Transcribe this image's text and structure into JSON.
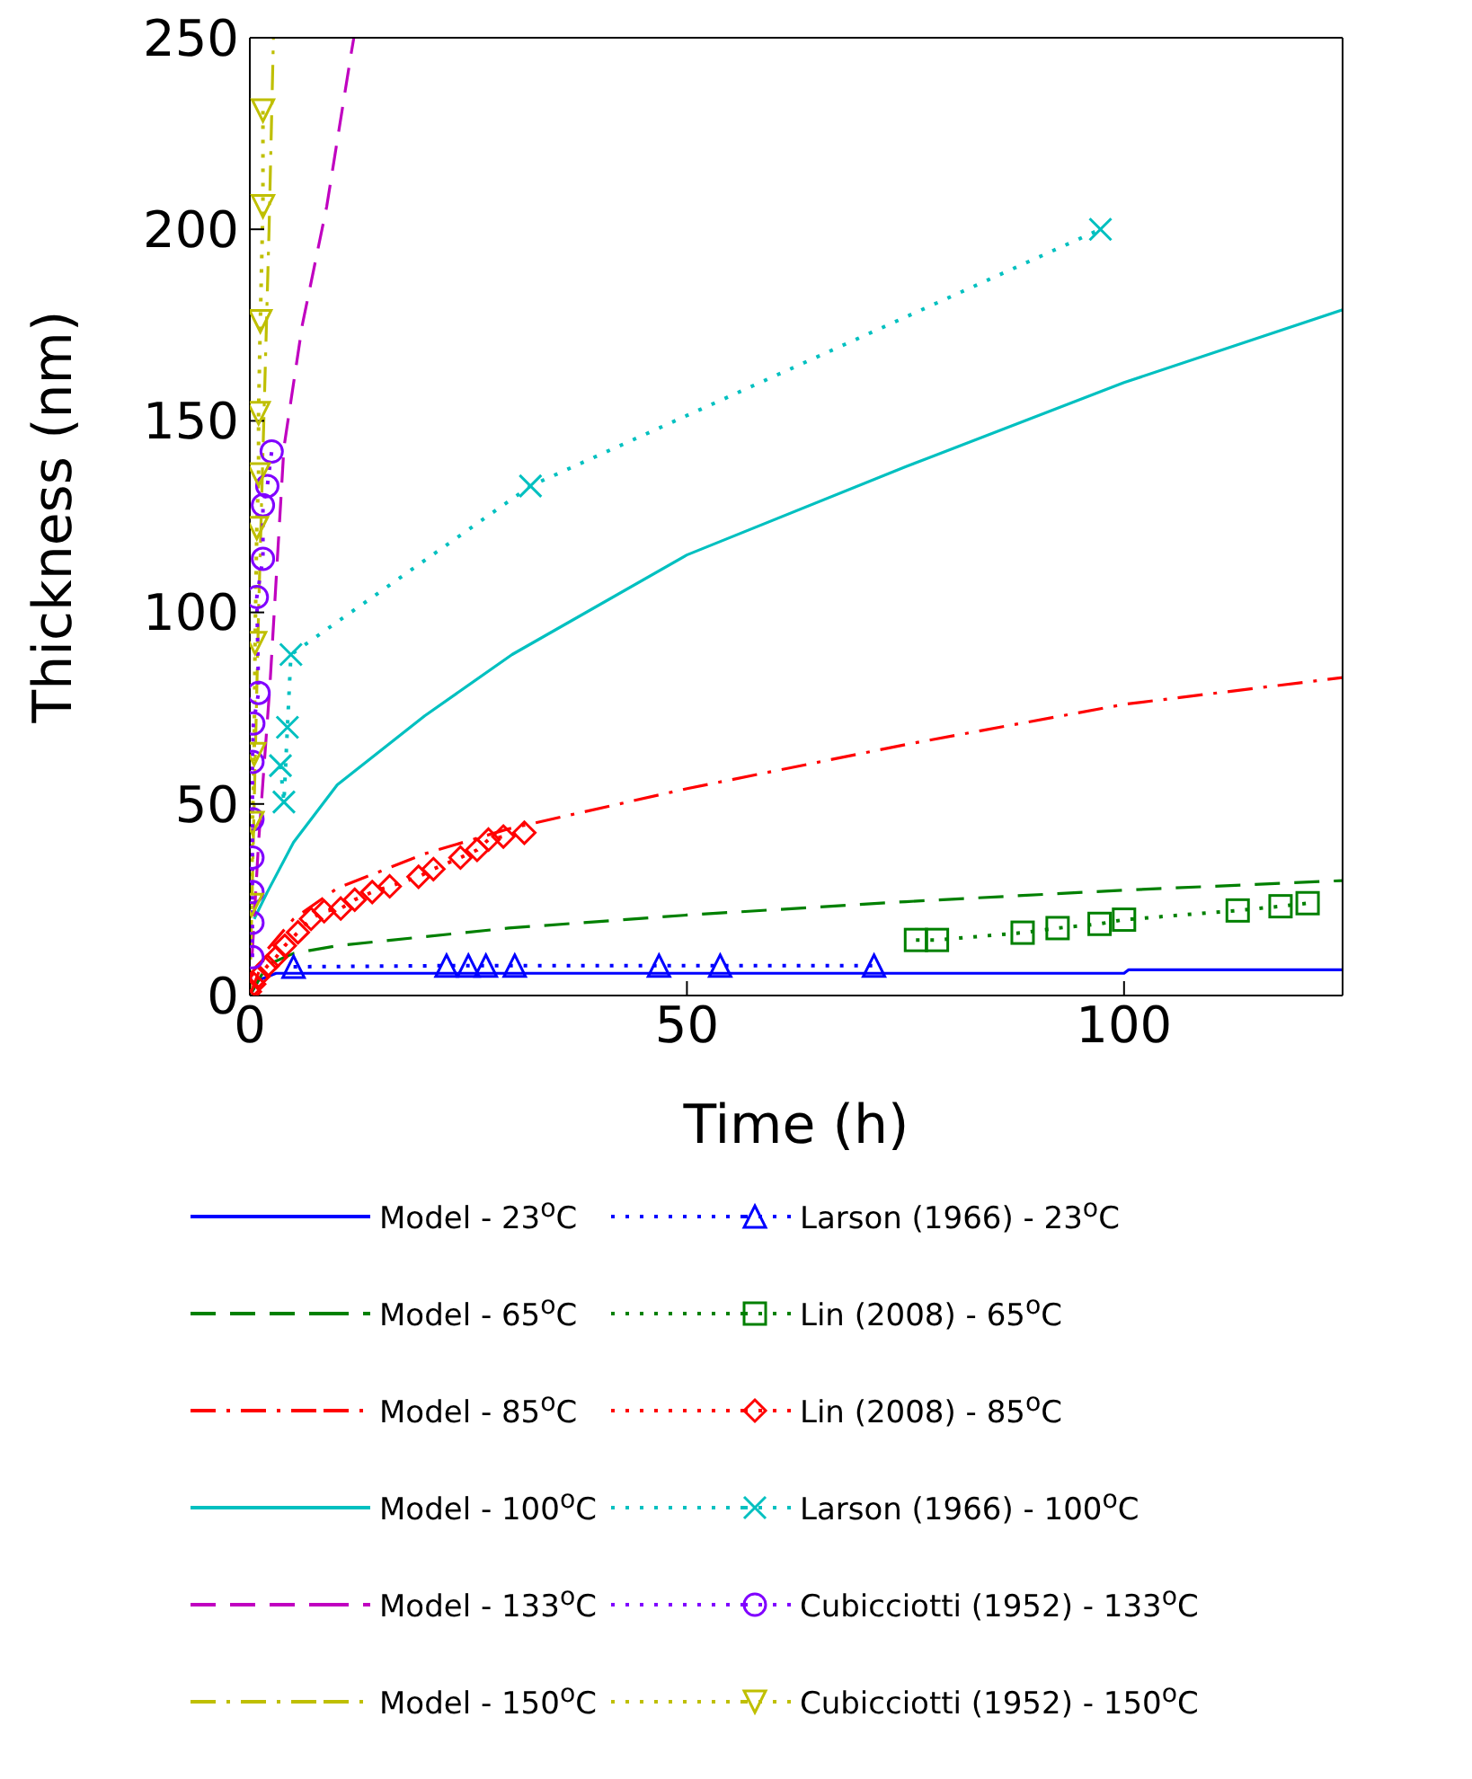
{
  "chart_data": {
    "type": "line",
    "xlabel": "Time (h)",
    "ylabel": "Thickness (nm)",
    "xlim": [
      0,
      125
    ],
    "ylim": [
      0,
      250
    ],
    "xticks": [
      0,
      50,
      100
    ],
    "yticks": [
      0,
      50,
      100,
      150,
      200,
      250
    ],
    "grid": false,
    "legend": "bottom",
    "series": [
      {
        "name": "Model - 23$^{o}$C",
        "color": "#0000ff",
        "line_style": "solid",
        "marker": "none",
        "x": [
          0,
          1,
          3,
          100,
          100.5,
          125
        ],
        "values": [
          0,
          4,
          5.8,
          5.8,
          6.7,
          6.7
        ]
      },
      {
        "name": "Model - 65$^{o}$C",
        "color": "#008000",
        "line_style": "dashed",
        "marker": "none",
        "x": [
          0,
          2,
          5,
          10,
          29.6,
          50,
          75,
          100,
          125
        ],
        "values": [
          0,
          8,
          11,
          13,
          17.6,
          21,
          24.5,
          27.5,
          30
        ]
      },
      {
        "name": "Model - 85$^{o}$C",
        "color": "#ff0000",
        "line_style": "dashdot",
        "marker": "none",
        "x": [
          0,
          2,
          5,
          10,
          20,
          29.6,
          50,
          75,
          100,
          125
        ],
        "values": [
          0,
          12,
          20,
          28,
          37,
          43.5,
          54,
          65.5,
          76,
          83
        ]
      },
      {
        "name": "Model - 100$^{o}$C",
        "color": "#00c0c0",
        "line_style": "solid",
        "marker": "none",
        "x": [
          0.5,
          2,
          5,
          10,
          20,
          30,
          50,
          75,
          100,
          125
        ],
        "values": [
          20,
          27,
          40,
          55,
          73,
          89,
          115,
          138,
          160,
          179
        ]
      },
      {
        "name": "Model - 133$^{o}$C",
        "color": "#c000c0",
        "line_style": "dashed",
        "marker": "none",
        "x": [
          0,
          1,
          2.3,
          3.9,
          6,
          8.8,
          11.6,
          11.9
        ],
        "values": [
          0,
          40,
          81,
          143,
          175,
          206,
          246,
          250
        ]
      },
      {
        "name": "Model - 150$^{o}$C",
        "color": "#bfbf00",
        "line_style": "dashdot",
        "marker": "none",
        "x": [
          0,
          0.5,
          1,
          1.6,
          2.2,
          2.7
        ],
        "values": [
          0,
          50,
          100,
          150,
          200,
          250
        ]
      },
      {
        "name": "Larson (1966) - 23$^{o}$C",
        "color": "#0000ff",
        "line_style": "dotted",
        "marker": "triangle",
        "x": [
          5,
          22.5,
          25,
          27,
          30.3,
          46.8,
          53.8,
          71.4
        ],
        "values": [
          7.5,
          7.8,
          7.8,
          7.8,
          7.8,
          7.8,
          7.8,
          7.8
        ]
      },
      {
        "name": "Lin (2008) - 65$^{o}$C",
        "color": "#008000",
        "line_style": "dotted",
        "marker": "square",
        "x": [
          76.2,
          78.6,
          88.4,
          92.4,
          97.2,
          100,
          113,
          117.9,
          121
        ],
        "values": [
          14.5,
          14.5,
          16.4,
          17.6,
          18.7,
          19.8,
          22.2,
          23.3,
          24.1
        ]
      },
      {
        "name": "Lin (2008) - 85$^{o}$C",
        "color": "#ff0000",
        "line_style": "dotted",
        "marker": "diamond",
        "x": [
          0,
          0.5,
          1,
          2,
          3,
          4,
          5.5,
          7,
          8.5,
          10.4,
          12,
          14,
          16,
          19.3,
          21,
          24.1,
          26,
          27.3,
          29,
          31.4
        ],
        "values": [
          1,
          3,
          5,
          7.7,
          10,
          13,
          16.5,
          20,
          22,
          22.7,
          25,
          27,
          28.5,
          31,
          33,
          36,
          38,
          40.7,
          41.5,
          42.5
        ]
      },
      {
        "name": "Larson (1966) - 100$^{o}$C",
        "color": "#00c0c0",
        "line_style": "dotted",
        "marker": "cross",
        "x": [
          3.5,
          3.9,
          4.3,
          4.7,
          32.1,
          97.3
        ],
        "values": [
          60,
          50.5,
          70,
          89,
          133,
          200
        ]
      },
      {
        "name": "Cubicciotti (1952) - 133$^{o}$C",
        "color": "#8000ff",
        "line_style": "dotted",
        "marker": "circle",
        "x": [
          0.3,
          0.3,
          0.3,
          0.3,
          0.3,
          0.3,
          0.4,
          1,
          0.8,
          1.5,
          1.5,
          2,
          2.5
        ],
        "values": [
          10,
          19,
          27,
          36,
          46,
          61,
          71,
          79,
          104,
          114,
          128,
          133,
          142
        ]
      },
      {
        "name": "Cubicciotti (1952) - 150$^{o}$C",
        "color": "#bfbf00",
        "line_style": "dotted",
        "marker": "triangle-down",
        "x": [
          0.2,
          0.3,
          0.5,
          0.6,
          0.8,
          1,
          1,
          1.2,
          1.5,
          1.5
        ],
        "values": [
          23.6,
          45,
          63,
          92,
          122,
          136,
          152,
          176,
          206,
          231
        ]
      }
    ]
  }
}
